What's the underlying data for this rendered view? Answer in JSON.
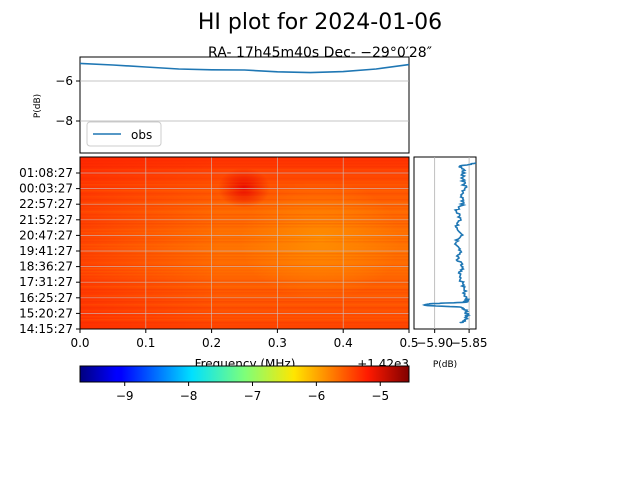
{
  "chart_data": [
    {
      "type": "line",
      "title": "HI plot for 2024-01-06",
      "subtitle": "RA- 17h45m40s Dec- −29°0′28″",
      "ylabel": "P(dB)",
      "ylim": [
        -9.6,
        -4.8
      ],
      "yticks": [
        -6,
        -8
      ],
      "ytick_labels": [
        "−6",
        "−8"
      ],
      "xlim": [
        0,
        0.5
      ],
      "grid": "y",
      "legend": "lower-left",
      "series": [
        {
          "name": "obs",
          "color": "#1f77b4",
          "x": [
            0.0,
            0.05,
            0.1,
            0.15,
            0.2,
            0.25,
            0.3,
            0.35,
            0.4,
            0.45,
            0.5
          ],
          "values": [
            -5.12,
            -5.2,
            -5.3,
            -5.4,
            -5.44,
            -5.45,
            -5.54,
            -5.58,
            -5.53,
            -5.4,
            -5.18
          ]
        }
      ]
    },
    {
      "type": "heatmap",
      "xlabel": "Frequency (MHz)",
      "x_offset_label": "+1.42e3",
      "xlim": [
        0,
        0.5
      ],
      "xticks": [
        0.0,
        0.1,
        0.2,
        0.3,
        0.4,
        0.5
      ],
      "xtick_labels": [
        "0.0",
        "0.1",
        "0.2",
        "0.3",
        "0.4",
        "0.5"
      ],
      "ytick_labels": [
        "01:08:27",
        "00:03:27",
        "22:57:27",
        "21:52:27",
        "20:47:27",
        "19:41:27",
        "18:36:27",
        "17:31:27",
        "16:25:27",
        "15:20:27",
        "14:15:27"
      ],
      "colormap": "jet",
      "grid": true,
      "hot_spot": {
        "frequency": 0.25,
        "time": "00:03:27"
      },
      "warm_region": {
        "frequency": 0.34,
        "time": "20:47:27"
      }
    },
    {
      "type": "line",
      "xlabel": "P(dB)",
      "xlim": [
        -5.93,
        -5.84
      ],
      "xticks": [
        -5.9,
        -5.85
      ],
      "xtick_labels": [
        "−5.90",
        "−5.85"
      ],
      "grid": "x",
      "series": [
        {
          "color": "#1f77b4",
          "y": [
            0.0,
            0.02,
            0.05,
            0.08,
            0.1,
            0.11,
            0.12,
            0.13,
            0.15,
            0.2,
            0.25,
            0.3,
            0.35,
            0.4,
            0.45,
            0.5,
            0.55,
            0.6,
            0.65,
            0.7,
            0.75,
            0.8,
            0.85,
            0.9,
            0.95,
            0.98,
            1.0
          ],
          "values": [
            -5.862,
            -5.856,
            -5.853,
            -5.855,
            -5.862,
            -5.915,
            -5.908,
            -5.855,
            -5.853,
            -5.857,
            -5.86,
            -5.865,
            -5.858,
            -5.868,
            -5.862,
            -5.872,
            -5.858,
            -5.868,
            -5.861,
            -5.869,
            -5.858,
            -5.862,
            -5.856,
            -5.86,
            -5.857,
            -5.863,
            -5.84
          ]
        }
      ]
    },
    {
      "type": "colorbar",
      "colormap": "jet",
      "range": [
        -9.7,
        -4.55
      ],
      "ticks": [
        -9,
        -8,
        -7,
        -6,
        -5
      ],
      "tick_labels": [
        "−9",
        "−8",
        "−7",
        "−6",
        "−5"
      ]
    }
  ]
}
